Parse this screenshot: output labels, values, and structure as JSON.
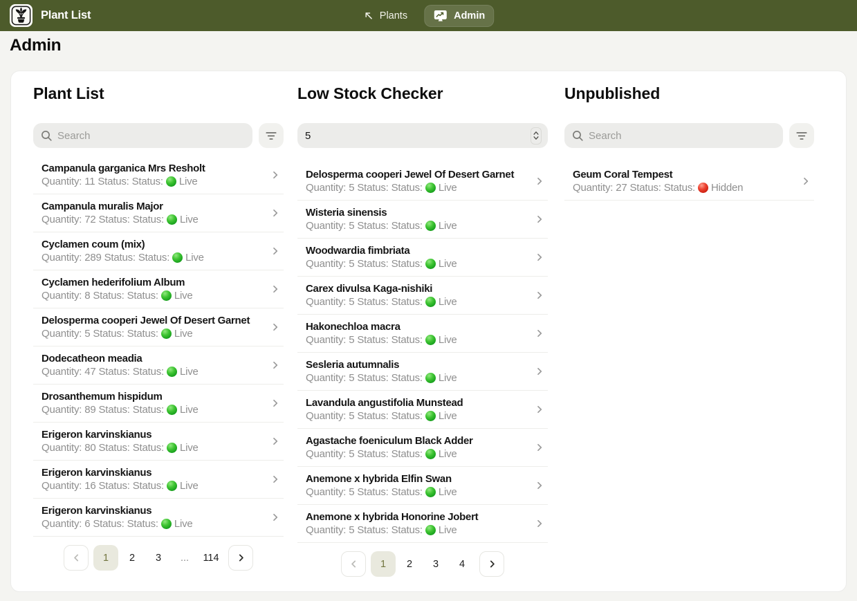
{
  "navbar": {
    "brand": "Plant List",
    "brand_color": "#4d5b2b",
    "logo_icon": "potted-plant",
    "nav": [
      {
        "label": "Plants",
        "icon": "arrow-up-left",
        "active": false
      },
      {
        "label": "Admin",
        "icon": "monitor-chart",
        "active": true
      }
    ]
  },
  "page_title": "Admin",
  "labels": {
    "quantity": "Quantity:",
    "status": "Status: Status:"
  },
  "status_colors": {
    "Live": "#1ba31f",
    "Hidden": "#d02415"
  },
  "columns": {
    "plant_list": {
      "title": "Plant List",
      "search_placeholder": "Search",
      "items": [
        {
          "name": "Campanula garganica Mrs Resholt",
          "quantity": "11",
          "status": "Live"
        },
        {
          "name": "Campanula muralis Major",
          "quantity": "72",
          "status": "Live"
        },
        {
          "name": "Cyclamen coum (mix)",
          "quantity": "289",
          "status": "Live"
        },
        {
          "name": "Cyclamen hederifolium Album",
          "quantity": "8",
          "status": "Live"
        },
        {
          "name": "Delosperma cooperi Jewel Of Desert Garnet",
          "quantity": "5",
          "status": "Live"
        },
        {
          "name": "Dodecatheon meadia",
          "quantity": "47",
          "status": "Live"
        },
        {
          "name": "Drosanthemum hispidum",
          "quantity": "89",
          "status": "Live"
        },
        {
          "name": "Erigeron karvinskianus",
          "quantity": "80",
          "status": "Live"
        },
        {
          "name": "Erigeron karvinskianus",
          "quantity": "16",
          "status": "Live"
        },
        {
          "name": "Erigeron karvinskianus",
          "quantity": "6",
          "status": "Live"
        }
      ],
      "pagination": {
        "pages": [
          "1",
          "2",
          "3",
          "...",
          "114"
        ],
        "active": "1"
      }
    },
    "low_stock": {
      "title": "Low Stock Checker",
      "threshold_value": "5",
      "items": [
        {
          "name": "Delosperma cooperi Jewel Of Desert Garnet",
          "quantity": "5",
          "status": "Live"
        },
        {
          "name": "Wisteria sinensis",
          "quantity": "5",
          "status": "Live"
        },
        {
          "name": "Woodwardia fimbriata",
          "quantity": "5",
          "status": "Live"
        },
        {
          "name": "Carex divulsa Kaga-nishiki",
          "quantity": "5",
          "status": "Live"
        },
        {
          "name": "Hakonechloa macra",
          "quantity": "5",
          "status": "Live"
        },
        {
          "name": "Sesleria autumnalis",
          "quantity": "5",
          "status": "Live"
        },
        {
          "name": "Lavandula angustifolia Munstead",
          "quantity": "5",
          "status": "Live"
        },
        {
          "name": "Agastache foeniculum Black Adder",
          "quantity": "5",
          "status": "Live"
        },
        {
          "name": "Anemone x hybrida Elfin Swan",
          "quantity": "5",
          "status": "Live"
        },
        {
          "name": "Anemone x hybrida Honorine Jobert",
          "quantity": "5",
          "status": "Live"
        }
      ],
      "pagination": {
        "pages": [
          "1",
          "2",
          "3",
          "4"
        ],
        "active": "1"
      }
    },
    "unpublished": {
      "title": "Unpublished",
      "search_placeholder": "Search",
      "items": [
        {
          "name": "Geum Coral Tempest",
          "quantity": "27",
          "status": "Hidden"
        }
      ]
    }
  }
}
